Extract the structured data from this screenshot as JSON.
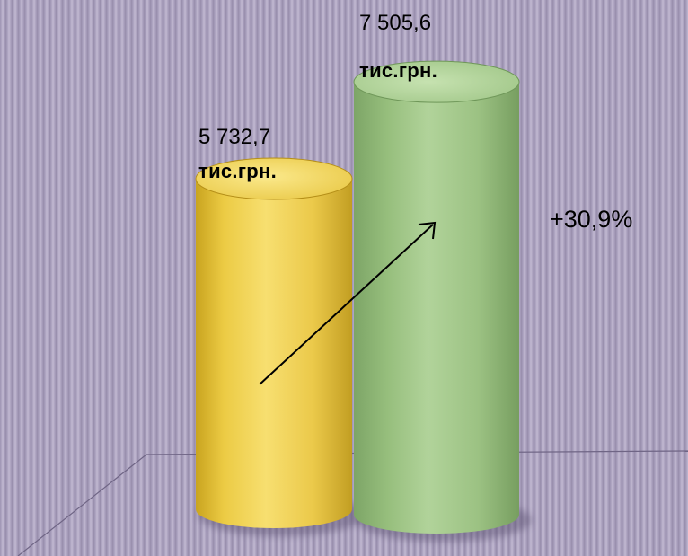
{
  "chart_data": {
    "type": "bar",
    "style": "3d-cylinder",
    "values": [
      5732.7,
      7505.6
    ],
    "value_labels": [
      "5 732,7",
      "7 505,6"
    ],
    "unit_labels": [
      "тис.грн.",
      "тис.грн."
    ],
    "colors": [
      "#e8c94c",
      "#9dc281"
    ],
    "ylim": [
      0,
      8000
    ],
    "grid": false,
    "annotation": {
      "text": "+30,9%",
      "trend_arrow": "up-right"
    }
  }
}
